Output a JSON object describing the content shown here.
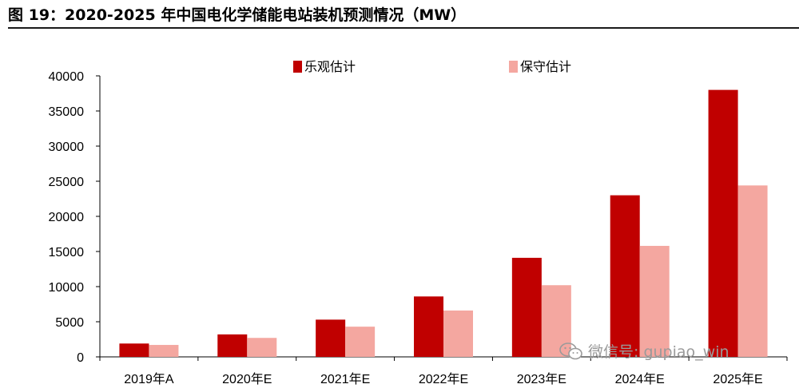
{
  "title": "图 19：2020-2025 年中国电化学储能电站装机预测情况（MW）",
  "watermark": "微信号: gupiao_win",
  "colors": {
    "optimistic": "#c00000",
    "conservative": "#f4a7a0",
    "axis": "#000000"
  },
  "chart_data": {
    "type": "bar",
    "categories": [
      "2019年A",
      "2020年E",
      "2021年E",
      "2022年E",
      "2023年E",
      "2024年E",
      "2025年E"
    ],
    "series": [
      {
        "name": "乐观估计",
        "values": [
          1900,
          3200,
          5300,
          8600,
          14100,
          23000,
          38000
        ]
      },
      {
        "name": "保守估计",
        "values": [
          1700,
          2700,
          4300,
          6600,
          10200,
          15800,
          24400
        ]
      }
    ],
    "ylim": [
      0,
      40000
    ],
    "yticks": [
      "0",
      "5000",
      "10000",
      "15000",
      "20000",
      "25000",
      "30000",
      "35000",
      "40000"
    ],
    "grid": false,
    "legend": "top"
  }
}
